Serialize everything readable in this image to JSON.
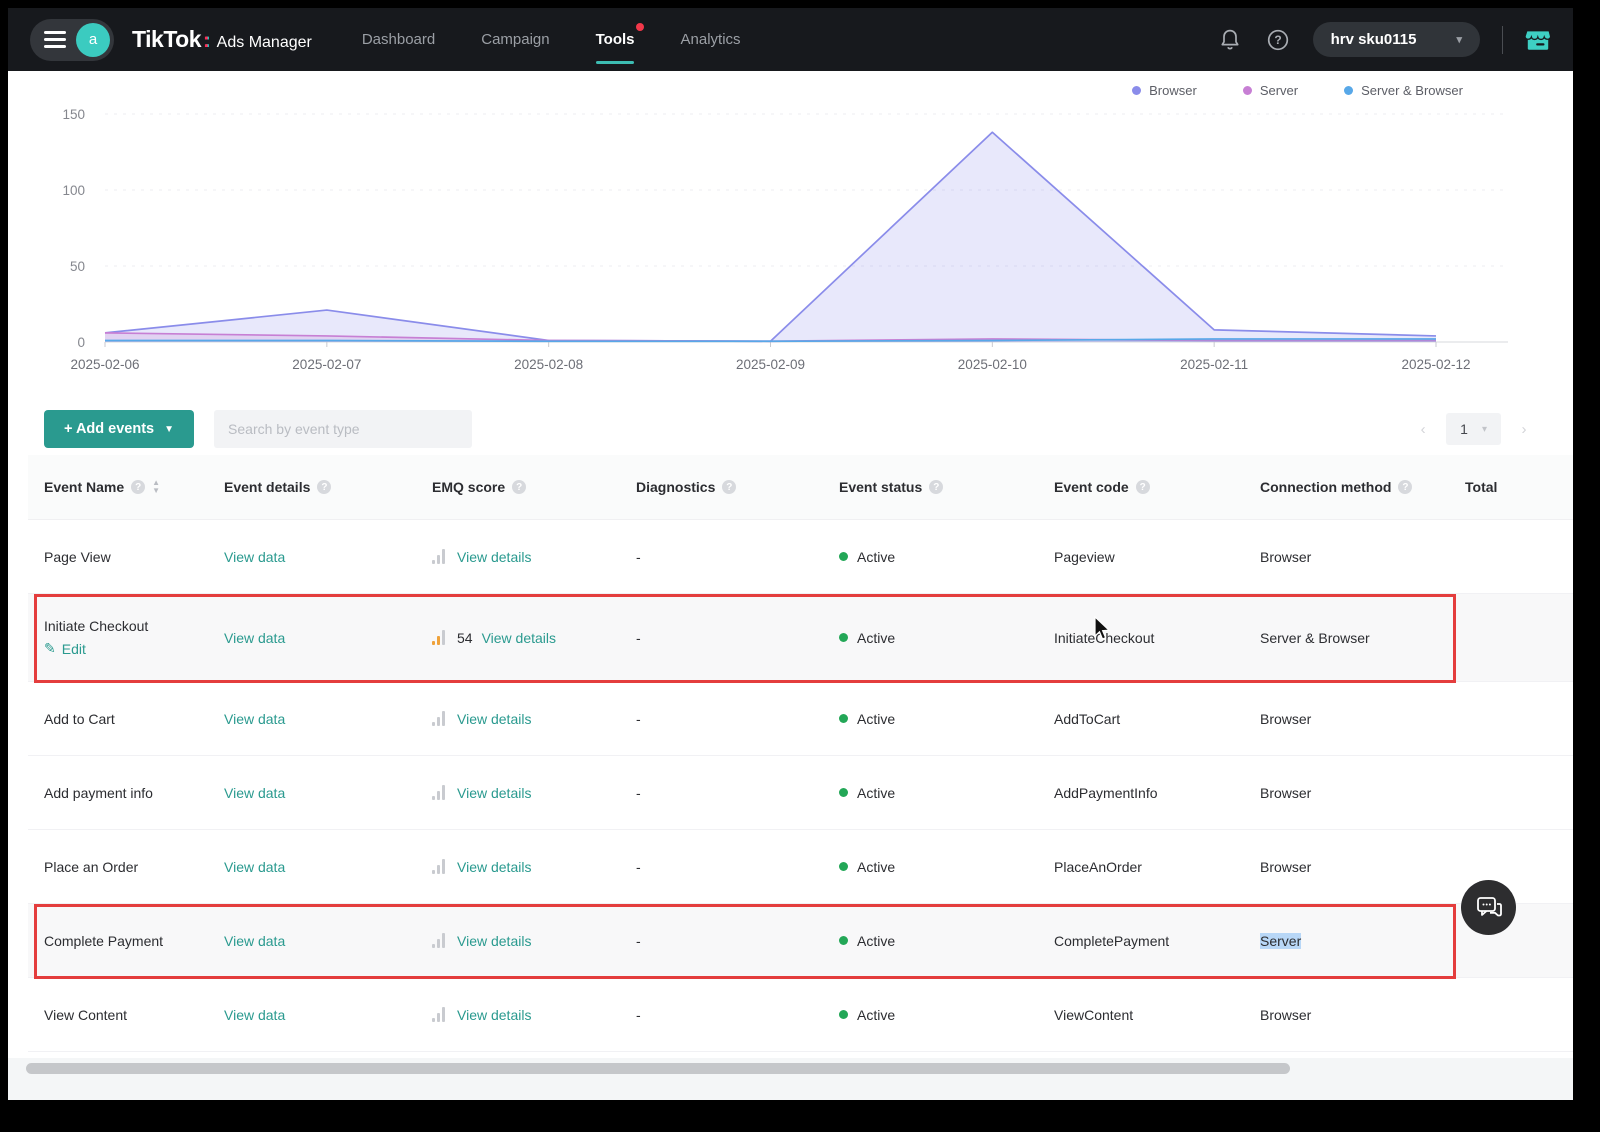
{
  "nav": {
    "brand": "TikTok",
    "brand_colon": ":",
    "brand_suffix": "Ads Manager",
    "avatar_letter": "a",
    "items": [
      {
        "label": "Dashboard",
        "active": false,
        "badge": false
      },
      {
        "label": "Campaign",
        "active": false,
        "badge": false
      },
      {
        "label": "Tools",
        "active": true,
        "badge": true
      },
      {
        "label": "Analytics",
        "active": false,
        "badge": false
      }
    ],
    "account": "hrv sku0115"
  },
  "chart_data": {
    "type": "area",
    "x": [
      "2025-02-06",
      "2025-02-07",
      "2025-02-08",
      "2025-02-09",
      "2025-02-10",
      "2025-02-11",
      "2025-02-12"
    ],
    "series": [
      {
        "name": "Browser",
        "color": "#8a8cea",
        "values": [
          6,
          21,
          1,
          0.5,
          138,
          8,
          4
        ]
      },
      {
        "name": "Server",
        "color": "#c77fd4",
        "values": [
          6,
          4,
          1,
          0.5,
          2,
          1,
          1
        ]
      },
      {
        "name": "Server & Browser",
        "color": "#58a8e8",
        "values": [
          1,
          1,
          0.5,
          0.5,
          1,
          2,
          2
        ]
      }
    ],
    "title": "",
    "xlabel": "",
    "ylabel": "",
    "ylim": [
      0,
      150
    ],
    "yticks": [
      0,
      50,
      100,
      150
    ],
    "grid": true,
    "legend_position": "top-right"
  },
  "toolbar": {
    "add_events_label": "+  Add events",
    "search_placeholder": "Search by event type",
    "page_number": "1"
  },
  "table": {
    "columns": [
      {
        "label": "Event Name",
        "info": true,
        "sort": true
      },
      {
        "label": "Event details",
        "info": true,
        "sort": false
      },
      {
        "label": "EMQ score",
        "info": true,
        "sort": false
      },
      {
        "label": "Diagnostics",
        "info": true,
        "sort": false
      },
      {
        "label": "Event status",
        "info": true,
        "sort": false
      },
      {
        "label": "Event code",
        "info": true,
        "sort": false
      },
      {
        "label": "Connection method",
        "info": true,
        "sort": false
      },
      {
        "label": "Total",
        "info": false,
        "sort": false
      }
    ],
    "labels": {
      "view_data": "View data",
      "view_details": "View details",
      "edit": "Edit"
    },
    "rows": [
      {
        "name": "Page View",
        "edit": false,
        "emq_score": "",
        "emq_colored": false,
        "diagnostics": "-",
        "status": "Active",
        "code": "Pageview",
        "method": "Browser",
        "method_selected": false,
        "highlighted": false
      },
      {
        "name": "Initiate Checkout",
        "edit": true,
        "emq_score": "54",
        "emq_colored": true,
        "diagnostics": "-",
        "status": "Active",
        "code": "InitiateCheckout",
        "method": "Server & Browser",
        "method_selected": false,
        "highlighted": true
      },
      {
        "name": "Add to Cart",
        "edit": false,
        "emq_score": "",
        "emq_colored": false,
        "diagnostics": "-",
        "status": "Active",
        "code": "AddToCart",
        "method": "Browser",
        "method_selected": false,
        "highlighted": false
      },
      {
        "name": "Add payment info",
        "edit": false,
        "emq_score": "",
        "emq_colored": false,
        "diagnostics": "-",
        "status": "Active",
        "code": "AddPaymentInfo",
        "method": "Browser",
        "method_selected": false,
        "highlighted": false
      },
      {
        "name": "Place an Order",
        "edit": false,
        "emq_score": "",
        "emq_colored": false,
        "diagnostics": "-",
        "status": "Active",
        "code": "PlaceAnOrder",
        "method": "Browser",
        "method_selected": false,
        "highlighted": false
      },
      {
        "name": "Complete Payment",
        "edit": false,
        "emq_score": "",
        "emq_colored": false,
        "diagnostics": "-",
        "status": "Active",
        "code": "CompletePayment",
        "method": "Server",
        "method_selected": true,
        "highlighted": true
      },
      {
        "name": "View Content",
        "edit": false,
        "emq_score": "",
        "emq_colored": false,
        "diagnostics": "-",
        "status": "Active",
        "code": "ViewContent",
        "method": "Browser",
        "method_selected": false,
        "highlighted": false
      }
    ]
  }
}
